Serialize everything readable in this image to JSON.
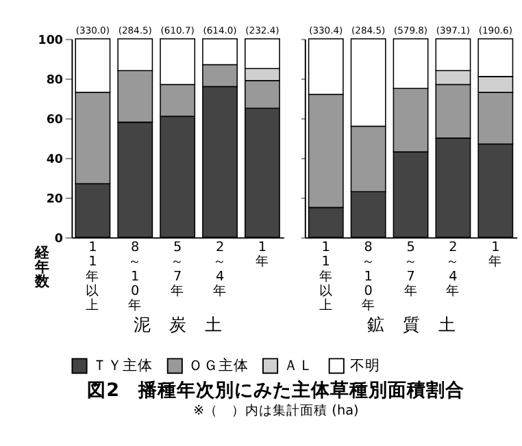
{
  "chart_data": [
    {
      "type": "bar",
      "stacked": true,
      "title": "図2　播種年次別にみた主体草種別面積割合",
      "xlabel": "泥　炭　土",
      "categories": [
        "11年以上",
        "8～10年",
        "5～7年",
        "2～4年",
        "1年"
      ],
      "ylim": [
        0,
        100
      ],
      "yticks": [
        0,
        20,
        40,
        60,
        80,
        100
      ],
      "grid": false,
      "legend": "bottom",
      "series": [
        {
          "name": "ＴＹ主体",
          "color": "#444444",
          "values": [
            27,
            58,
            61,
            76,
            65
          ]
        },
        {
          "name": "ＯＧ主体",
          "color": "#999999",
          "values": [
            46,
            26,
            16,
            11,
            14
          ]
        },
        {
          "name": "ＡＬ",
          "color": "#d0d0d0",
          "values": [
            null,
            null,
            null,
            null,
            6
          ]
        },
        {
          "name": "不明",
          "color": "#ffffff",
          "values": [
            27,
            16,
            23,
            13,
            15
          ]
        }
      ],
      "annotations": [
        "経年数",
        "※（　）内は集計面積 (ha)",
        {
          "text": "(330.0)",
          "x": "11年以上",
          "y": 100
        },
        {
          "text": "(284.5)",
          "x": "8～10年",
          "y": 100
        },
        {
          "text": "(610.7)",
          "x": "5～7年",
          "y": 100
        },
        {
          "text": "(614.0)",
          "x": "2～4年",
          "y": 100
        },
        {
          "text": "(232.4)",
          "x": "1年",
          "y": 100
        }
      ]
    },
    {
      "type": "bar",
      "stacked": true,
      "xlabel": "鉱　質　土",
      "categories": [
        "11年以上",
        "8～10年",
        "5～7年",
        "2～4年",
        "1年"
      ],
      "ylim": [
        0,
        100
      ],
      "yticks": [
        0,
        20,
        40,
        60,
        80,
        100
      ],
      "tick_labels": "x",
      "grid": false,
      "legend": "bottom",
      "series": [
        {
          "name": "ＴＹ主体",
          "color": "#444444",
          "values": [
            15,
            23,
            43,
            50,
            47
          ]
        },
        {
          "name": "ＯＧ主体",
          "color": "#999999",
          "values": [
            57,
            33,
            32,
            27,
            26
          ]
        },
        {
          "name": "ＡＬ",
          "color": "#d0d0d0",
          "values": [
            null,
            null,
            null,
            7,
            8
          ]
        },
        {
          "name": "不明",
          "color": "#ffffff",
          "values": [
            28,
            44,
            25,
            16,
            19
          ]
        }
      ],
      "annotations": [
        {
          "text": "(330.4)",
          "x": "11年以上",
          "y": 100
        },
        {
          "text": "(284.5)",
          "x": "8～10年",
          "y": 100
        },
        {
          "text": "(579.8)",
          "x": "5～7年",
          "y": 100
        },
        {
          "text": "(397.1)",
          "x": "2～4年",
          "y": 100
        },
        {
          "text": "(190.6)",
          "x": "1年",
          "y": 100
        }
      ]
    }
  ]
}
